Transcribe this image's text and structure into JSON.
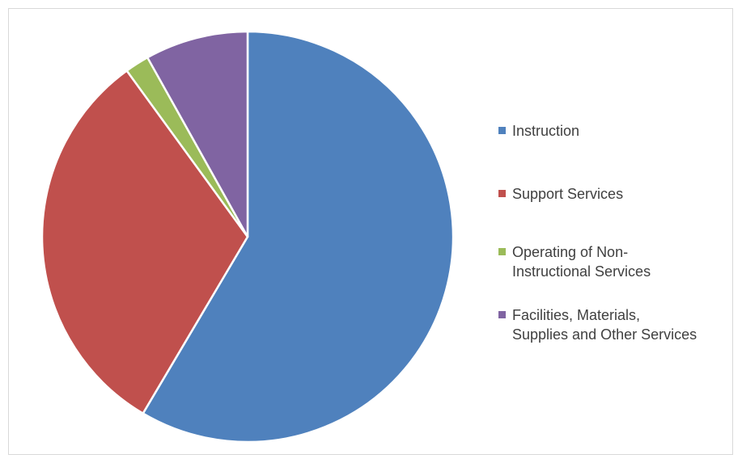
{
  "chart_data": {
    "type": "pie",
    "title": "",
    "slices": [
      {
        "label": "Instruction",
        "value": 58.5,
        "color": "#4F81BD"
      },
      {
        "label": "Support Services",
        "value": 31.5,
        "color": "#C0504D"
      },
      {
        "label": "Operating of Non-Instructional Services",
        "value": 1.9,
        "color": "#9BBB59"
      },
      {
        "label": "Facilities, Materials, Supplies and Other Services",
        "value": 8.1,
        "color": "#8064A2"
      }
    ],
    "legend": {
      "placement": "right",
      "entries": [
        {
          "text": "Instruction",
          "color": "#4F81BD"
        },
        {
          "text": "Support Services",
          "color": "#C0504D"
        },
        {
          "text": "Operating of Non-\nInstructional Services",
          "color": "#9BBB59"
        },
        {
          "text": "Facilities, Materials,\nSupplies and Other Services",
          "color": "#8064A2"
        }
      ]
    }
  }
}
